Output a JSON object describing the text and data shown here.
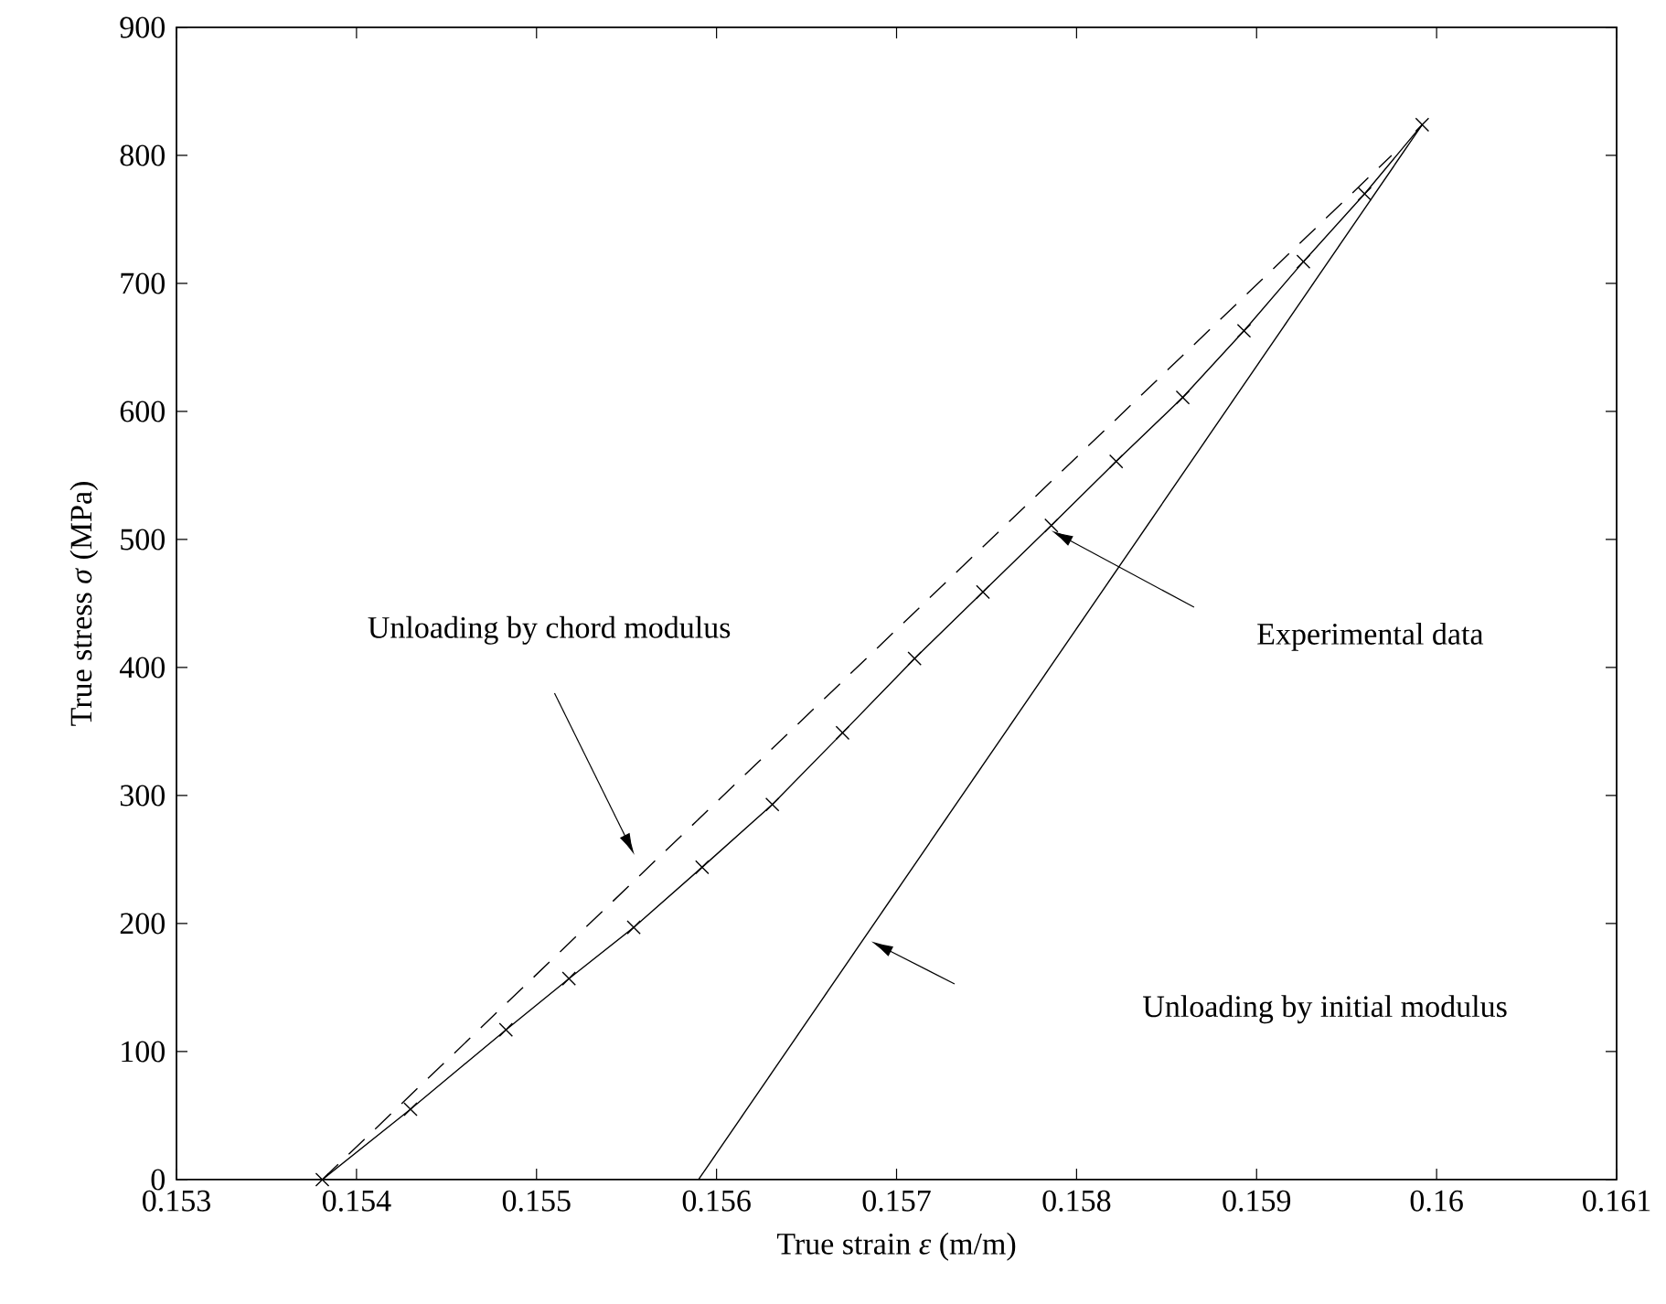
{
  "chart_data": {
    "type": "line",
    "xlabel": "True strain *ε* (m/m)",
    "ylabel": "True stress *σ* (MPa)",
    "series": [
      {
        "color": "#000000",
        "line_style": "solid",
        "marker": "cross",
        "x": [
          0.15381,
          0.1543,
          0.15483,
          0.15518,
          0.15554,
          0.15592,
          0.15631,
          0.1567,
          0.1571,
          0.15748,
          0.15786,
          0.15822,
          0.15859,
          0.15893,
          0.15926,
          0.1596,
          0.15992
        ],
        "values": [
          0,
          55,
          117,
          157,
          197,
          244,
          293,
          349,
          407,
          459,
          511,
          561,
          611,
          663,
          717,
          770,
          824
        ]
      },
      {
        "color": "#000000",
        "line_style": "dashed",
        "marker": "none",
        "x": [
          0.15381,
          0.15975
        ],
        "values": [
          0,
          800
        ]
      },
      {
        "color": "#000000",
        "line_style": "solid",
        "marker": "none",
        "x": [
          0.1559,
          0.15992
        ],
        "values": [
          0,
          824
        ]
      }
    ],
    "annotations": [
      "Unloading by chord modulus",
      "Experimental data",
      "Unloading by initial modulus"
    ],
    "xlim": [
      0.153,
      0.161
    ],
    "ylim": [
      0,
      900
    ],
    "xticks": [
      0.153,
      0.154,
      0.155,
      0.156,
      0.157,
      0.158,
      0.159,
      0.16,
      0.161
    ],
    "yticks": [
      0,
      100,
      200,
      300,
      400,
      500,
      600,
      700,
      800,
      900
    ],
    "grid": false
  }
}
